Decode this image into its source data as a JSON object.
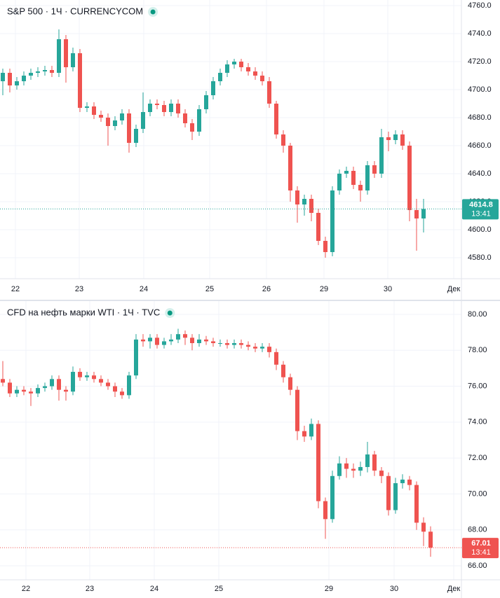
{
  "chart_data": [
    {
      "type": "candlestick",
      "title": "S&P 500 · 1Ч · CURRENCYCOM",
      "up_color": "#26a69a",
      "down_color": "#ef5350",
      "open": [
        4706,
        4712,
        4703,
        4706,
        4710,
        4712,
        4713,
        4714,
        4712,
        4736,
        4716,
        4726,
        4687,
        4688,
        4682,
        4680,
        4674,
        4678,
        4683,
        4662,
        4672,
        4684,
        4690,
        4689,
        4684,
        4690,
        4683,
        4676,
        4670,
        4686,
        4696,
        4706,
        4712,
        4718,
        4720,
        4716,
        4713,
        4710,
        4706,
        4690,
        4668,
        4660,
        4628,
        4618,
        4622,
        4612,
        4592,
        4584,
        4628,
        4640,
        4642,
        4632,
        4628,
        4646,
        4640,
        4666,
        4664,
        4668,
        4660,
        4614,
        4608
      ],
      "high": [
        4715,
        4715,
        4709,
        4713,
        4715,
        4716,
        4717,
        4717,
        4743,
        4739,
        4730,
        4729,
        4691,
        4691,
        4685,
        4683,
        4681,
        4686,
        4686,
        4675,
        4698,
        4693,
        4693,
        4692,
        4693,
        4693,
        4686,
        4679,
        4689,
        4699,
        4709,
        4715,
        4721,
        4722,
        4722,
        4719,
        4716,
        4713,
        4709,
        4692,
        4671,
        4662,
        4631,
        4625,
        4625,
        4615,
        4595,
        4631,
        4643,
        4645,
        4645,
        4635,
        4649,
        4649,
        4672,
        4670,
        4671,
        4671,
        4663,
        4622,
        4622
      ],
      "low": [
        4696,
        4698,
        4700,
        4703,
        4707,
        4709,
        4710,
        4709,
        4709,
        4705,
        4713,
        4684,
        4684,
        4679,
        4677,
        4660,
        4671,
        4675,
        4655,
        4659,
        4669,
        4681,
        4686,
        4681,
        4681,
        4680,
        4673,
        4664,
        4667,
        4683,
        4693,
        4703,
        4709,
        4715,
        4713,
        4710,
        4707,
        4703,
        4687,
        4665,
        4655,
        4620,
        4605,
        4610,
        4606,
        4589,
        4580,
        4581,
        4625,
        4637,
        4629,
        4620,
        4625,
        4637,
        4637,
        4656,
        4661,
        4657,
        4606,
        4585,
        4598
      ],
      "close": [
        4712,
        4703,
        4706,
        4710,
        4712,
        4713,
        4714,
        4712,
        4736,
        4716,
        4726,
        4687,
        4688,
        4682,
        4680,
        4674,
        4678,
        4683,
        4662,
        4672,
        4684,
        4690,
        4689,
        4684,
        4690,
        4683,
        4676,
        4670,
        4686,
        4696,
        4706,
        4712,
        4718,
        4720,
        4716,
        4713,
        4710,
        4706,
        4690,
        4668,
        4660,
        4628,
        4618,
        4622,
        4612,
        4592,
        4584,
        4628,
        4640,
        4642,
        4632,
        4628,
        4646,
        4640,
        4666,
        4664,
        4668,
        4660,
        4614,
        4608,
        4614.8
      ],
      "last_price": 4614.8,
      "countdown": "13:41",
      "xlim": [
        -0.4,
        65.4
      ],
      "xticks": [
        {
          "value": 1.8,
          "label": "22"
        },
        {
          "value": 10.9,
          "label": "23"
        },
        {
          "value": 20.1,
          "label": "24"
        },
        {
          "value": 29.5,
          "label": "25"
        },
        {
          "value": 37.6,
          "label": "26"
        },
        {
          "value": 45.8,
          "label": "29"
        },
        {
          "value": 54.9,
          "label": "30"
        },
        {
          "value": 64.3,
          "label": "Дек"
        }
      ],
      "ylim": [
        4565,
        4764
      ],
      "yticks": [
        {
          "value": 4580,
          "label": "4580.0"
        },
        {
          "value": 4600,
          "label": "4600.0"
        },
        {
          "value": 4620,
          "label": "4620.0"
        },
        {
          "value": 4640,
          "label": "4640.0"
        },
        {
          "value": 4660,
          "label": "4660.0"
        },
        {
          "value": 4680,
          "label": "4680.0"
        },
        {
          "value": 4700,
          "label": "4700.0"
        },
        {
          "value": 4720,
          "label": "4720.0"
        },
        {
          "value": 4740,
          "label": "4740.0"
        },
        {
          "value": 4760,
          "label": "4760.0"
        }
      ],
      "grid": true
    },
    {
      "type": "candlestick",
      "title": "CFD на нефть марки WTI · 1Ч · TVC",
      "up_color": "#26a69a",
      "down_color": "#ef5350",
      "open": [
        76.4,
        76.2,
        75.6,
        75.8,
        75.7,
        75.6,
        75.9,
        76.0,
        76.4,
        75.8,
        75.7,
        76.8,
        76.5,
        76.6,
        76.4,
        76.2,
        76.0,
        75.7,
        75.5,
        76.6,
        78.6,
        78.5,
        78.7,
        78.3,
        78.5,
        78.6,
        78.9,
        78.7,
        78.4,
        78.6,
        78.5,
        78.4,
        78.4,
        78.3,
        78.4,
        78.3,
        78.2,
        78.1,
        78.2,
        77.9,
        77.2,
        76.5,
        75.8,
        73.5,
        73.2,
        73.9,
        69.6,
        68.6,
        71.0,
        71.7,
        71.4,
        71.3,
        71.5,
        72.2,
        71.3,
        71.0,
        69.1,
        70.6,
        70.8,
        70.5,
        68.4,
        67.9
      ],
      "high": [
        77.4,
        76.4,
        76.0,
        76.0,
        75.9,
        76.1,
        76.2,
        76.6,
        76.6,
        76.0,
        77.1,
        77.0,
        76.8,
        76.8,
        76.6,
        76.4,
        76.2,
        75.9,
        76.8,
        78.9,
        78.9,
        78.9,
        78.9,
        78.7,
        78.9,
        79.2,
        79.1,
        78.9,
        78.9,
        78.8,
        78.7,
        78.6,
        78.6,
        78.6,
        78.6,
        78.5,
        78.4,
        78.4,
        78.4,
        78.1,
        77.4,
        76.7,
        76.0,
        73.8,
        74.2,
        74.1,
        69.8,
        71.3,
        72.1,
        72.0,
        71.7,
        71.8,
        72.9,
        72.4,
        71.5,
        71.2,
        70.9,
        71.1,
        71.0,
        70.7,
        68.7,
        68.2
      ],
      "low": [
        76.0,
        75.4,
        75.4,
        75.5,
        74.9,
        75.4,
        75.7,
        75.8,
        75.2,
        75.2,
        75.5,
        76.3,
        76.3,
        76.2,
        76.0,
        75.8,
        75.4,
        75.3,
        75.3,
        76.4,
        78.2,
        78.1,
        78.1,
        78.1,
        78.3,
        78.4,
        78.3,
        78.0,
        78.2,
        78.3,
        78.2,
        78.2,
        78.1,
        78.1,
        78.1,
        78.0,
        77.9,
        77.9,
        77.6,
        76.9,
        76.2,
        75.5,
        73.0,
        72.9,
        73.0,
        69.2,
        67.5,
        68.4,
        70.8,
        70.9,
        70.9,
        71.0,
        71.2,
        71.0,
        70.6,
        68.8,
        68.9,
        70.3,
        70.2,
        68.0,
        67.1,
        66.5
      ],
      "close": [
        76.2,
        75.6,
        75.8,
        75.7,
        75.6,
        75.9,
        76.0,
        76.4,
        75.8,
        75.7,
        76.8,
        76.5,
        76.6,
        76.4,
        76.2,
        76.0,
        75.7,
        75.5,
        76.6,
        78.6,
        78.5,
        78.7,
        78.3,
        78.5,
        78.6,
        78.9,
        78.7,
        78.4,
        78.6,
        78.5,
        78.4,
        78.4,
        78.3,
        78.4,
        78.3,
        78.2,
        78.1,
        78.2,
        77.9,
        77.2,
        76.5,
        75.8,
        73.5,
        73.2,
        73.9,
        69.6,
        68.6,
        71.0,
        71.7,
        71.4,
        71.3,
        71.5,
        72.2,
        71.3,
        71.0,
        69.1,
        70.6,
        70.8,
        70.5,
        68.4,
        67.9,
        67.01
      ],
      "last_price": 67.01,
      "countdown": "13:41",
      "xlim": [
        -0.4,
        65.4
      ],
      "xticks": [
        {
          "value": 3.3,
          "label": "22"
        },
        {
          "value": 12.4,
          "label": "23"
        },
        {
          "value": 21.6,
          "label": "24"
        },
        {
          "value": 30.8,
          "label": "25"
        },
        {
          "value": 46.5,
          "label": "29"
        },
        {
          "value": 55.8,
          "label": "30"
        },
        {
          "value": 64.3,
          "label": "Дек"
        }
      ],
      "ylim": [
        65.22,
        80.74
      ],
      "yticks": [
        {
          "value": 66,
          "label": "66.00"
        },
        {
          "value": 68,
          "label": "68.00"
        },
        {
          "value": 70,
          "label": "70.00"
        },
        {
          "value": 72,
          "label": "72.00"
        },
        {
          "value": 74,
          "label": "74.00"
        },
        {
          "value": 76,
          "label": "76.00"
        },
        {
          "value": 78,
          "label": "78.00"
        },
        {
          "value": 80,
          "label": "80.00"
        }
      ],
      "grid": true
    }
  ]
}
